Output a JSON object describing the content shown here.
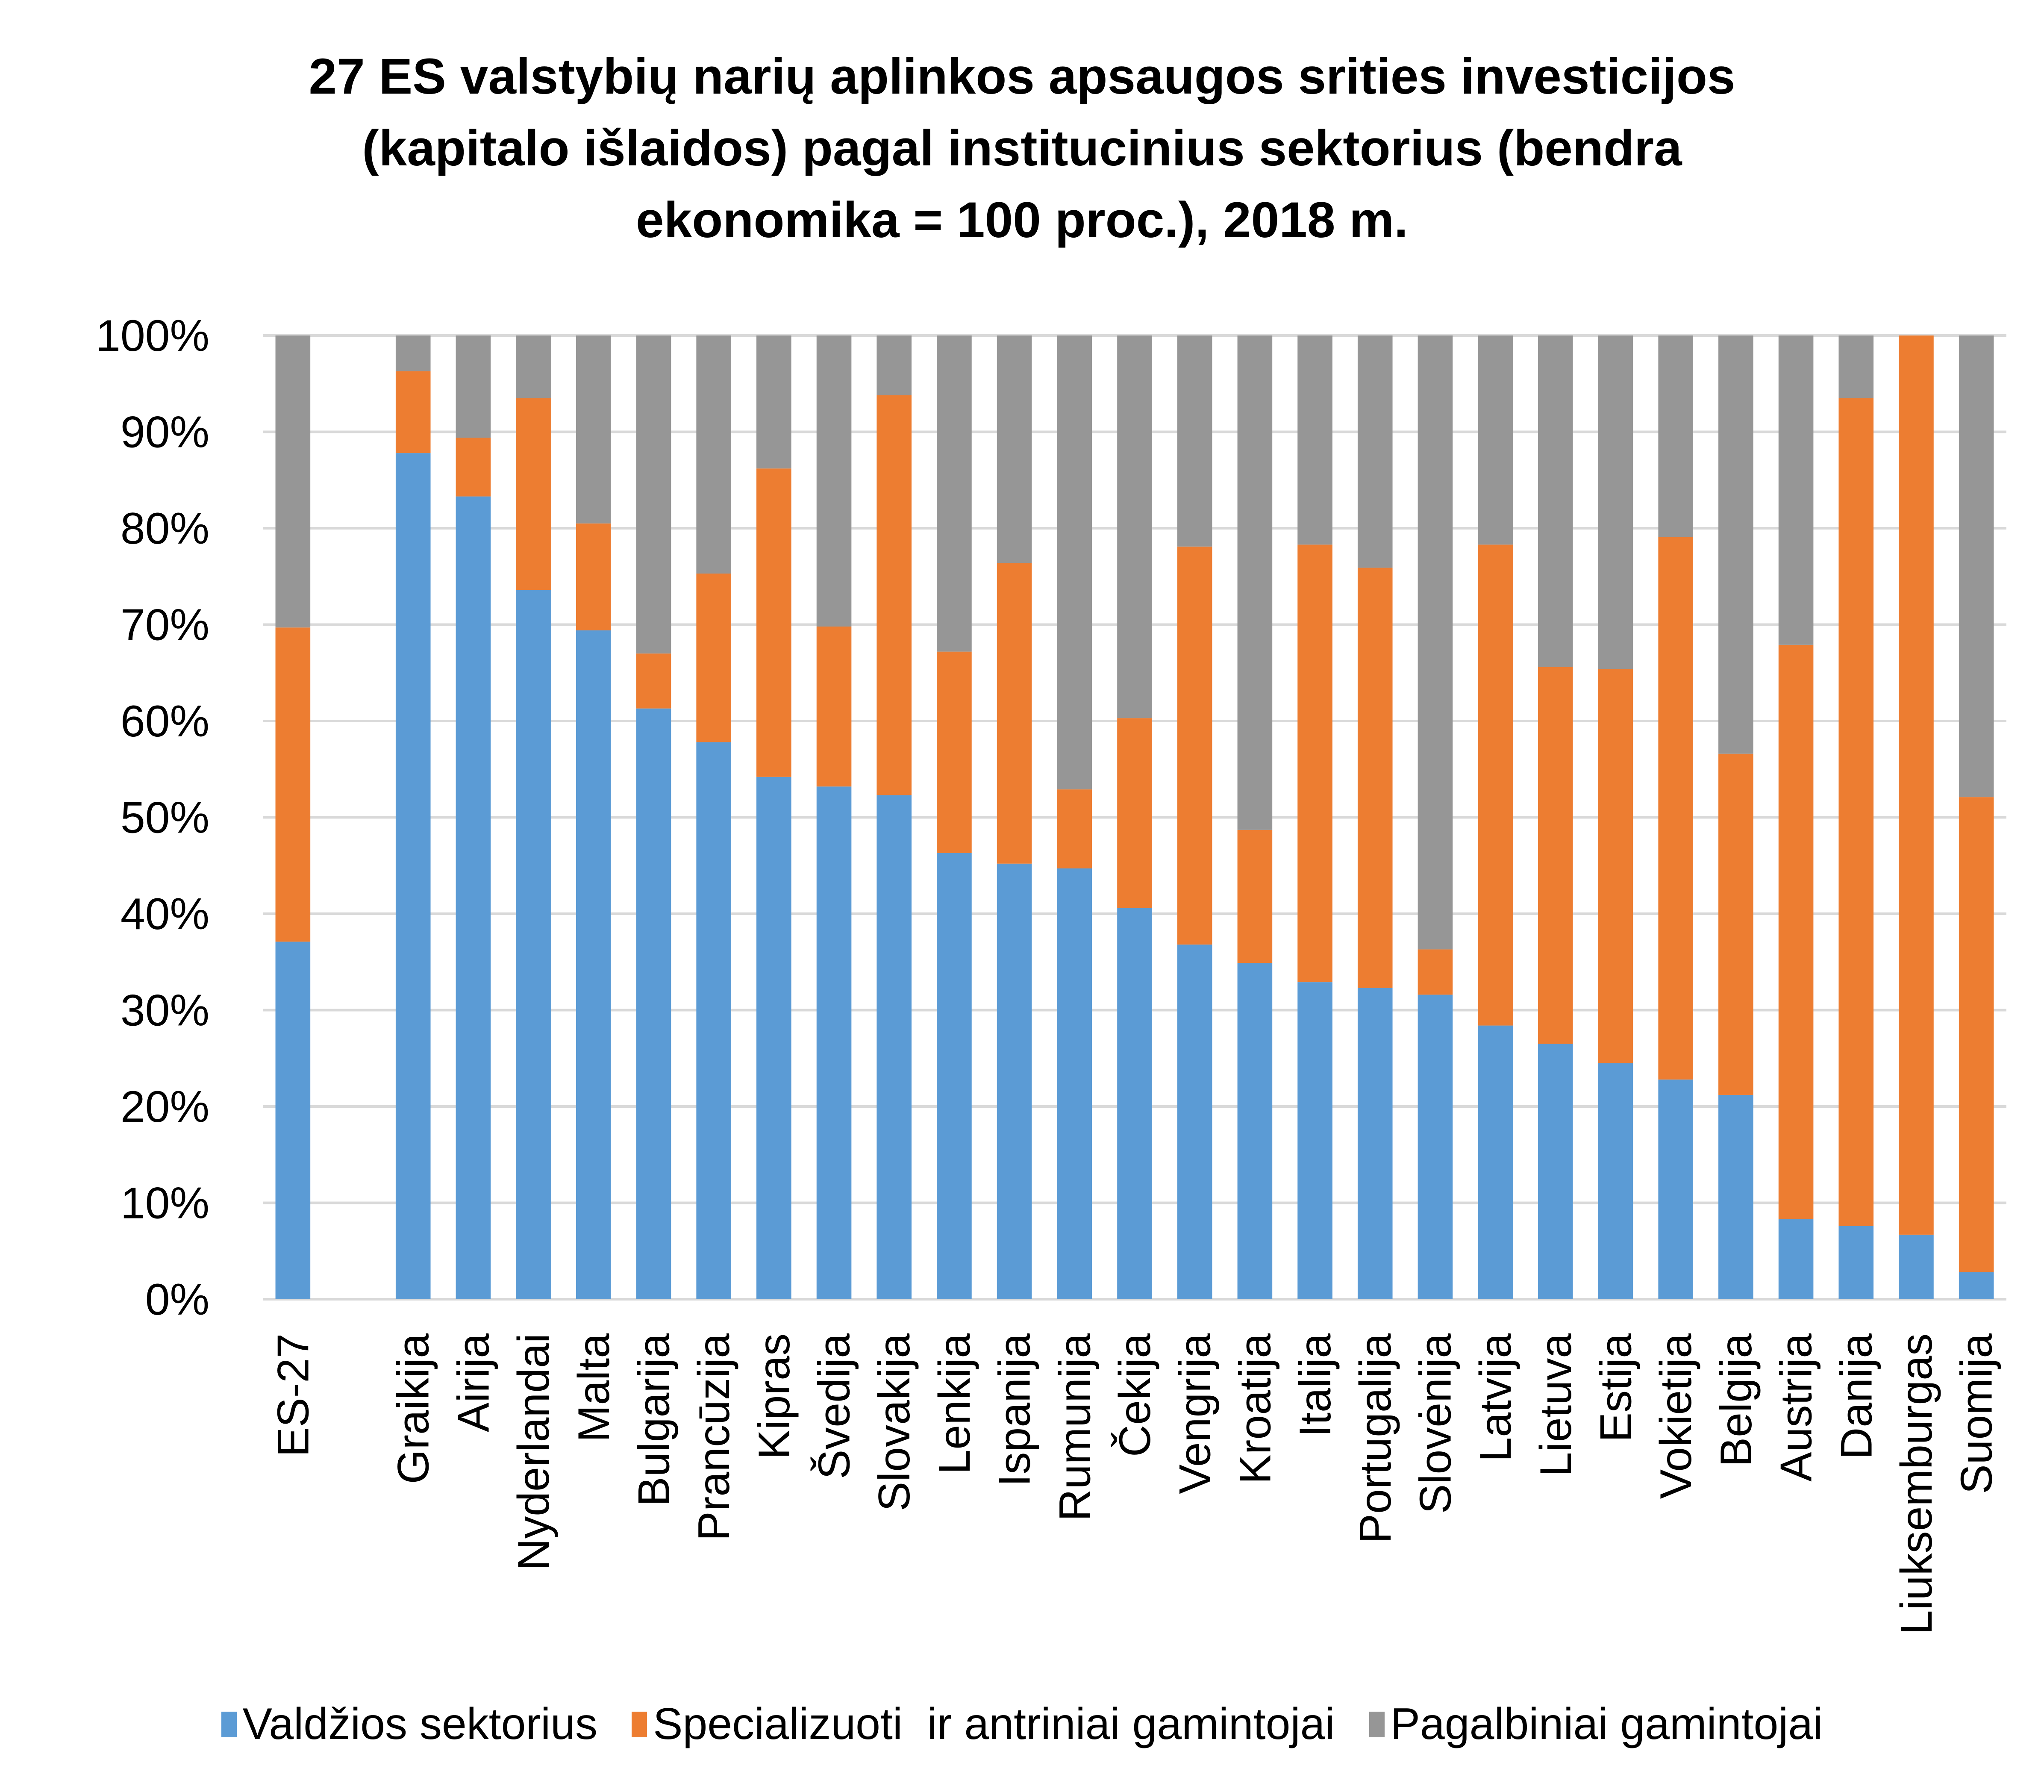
{
  "chart_data": {
    "type": "bar",
    "stacked": true,
    "percent_stacked": true,
    "title": "27 ES valstybių narių aplinkos apsaugos srities investicijos (kapitalo išlaidos) pagal institucinius sektorius (bendra ekonomika = 100 proc.), 2018 m.",
    "title_lines": [
      "27 ES valstybių narių aplinkos apsaugos srities investicijos",
      "(kapitalo išlaidos) pagal institucinius sektorius (bendra",
      "ekonomika = 100 proc.), 2018 m."
    ],
    "xlabel": "",
    "ylabel": "",
    "ylim": [
      0,
      100
    ],
    "yticks": [
      0,
      10,
      20,
      30,
      40,
      50,
      60,
      70,
      80,
      90,
      100
    ],
    "ytick_labels": [
      "0%",
      "10%",
      "20%",
      "30%",
      "40%",
      "50%",
      "60%",
      "70%",
      "80%",
      "90%",
      "100%"
    ],
    "grid": true,
    "legend_position": "bottom",
    "categories": [
      "ES-27",
      "",
      "Graikija",
      "Airija",
      "Nyderlandai",
      "Malta",
      "Bulgarija",
      "Prancūzija",
      "Kipras",
      "Švedija",
      "Slovakija",
      "Lenkija",
      "Ispanija",
      "Rumunija",
      "Čekija",
      "Vengrija",
      "Kroatija",
      "Italija",
      "Portugalija",
      "Slovėnija",
      "Latvija",
      "Lietuva",
      "Estija",
      "Vokietija",
      "Belgija",
      "Austrija",
      "Danija",
      "Liuksemburgas",
      "Suomija"
    ],
    "series": [
      {
        "name": "Valdžios sektorius",
        "color": "#5B9BD5",
        "values": [
          37.1,
          null,
          87.8,
          83.3,
          73.6,
          69.4,
          61.3,
          57.8,
          54.2,
          53.2,
          52.3,
          46.3,
          45.2,
          44.7,
          40.6,
          36.8,
          34.9,
          32.9,
          32.3,
          31.6,
          28.4,
          26.5,
          24.5,
          22.8,
          21.2,
          8.3,
          7.6,
          6.7,
          2.8
        ]
      },
      {
        "name": "Specializuoti  ir antriniai gamintojai",
        "color": "#ED7D31",
        "values": [
          32.6,
          null,
          8.5,
          6.1,
          19.9,
          11.1,
          5.7,
          17.5,
          32.0,
          16.6,
          41.5,
          20.9,
          31.2,
          8.2,
          19.7,
          41.3,
          13.8,
          45.4,
          43.6,
          4.7,
          49.9,
          39.1,
          40.9,
          56.3,
          35.4,
          59.6,
          85.9,
          93.3,
          49.3
        ]
      },
      {
        "name": "Pagalbiniai gamintojai",
        "color": "#969696",
        "values": [
          30.3,
          null,
          3.7,
          10.6,
          6.5,
          19.5,
          33.0,
          24.7,
          13.8,
          30.2,
          6.2,
          32.8,
          23.6,
          47.1,
          39.7,
          21.9,
          51.3,
          21.7,
          24.1,
          63.7,
          21.7,
          34.4,
          34.6,
          20.9,
          43.4,
          32.1,
          6.5,
          0.0,
          47.9
        ]
      }
    ]
  }
}
